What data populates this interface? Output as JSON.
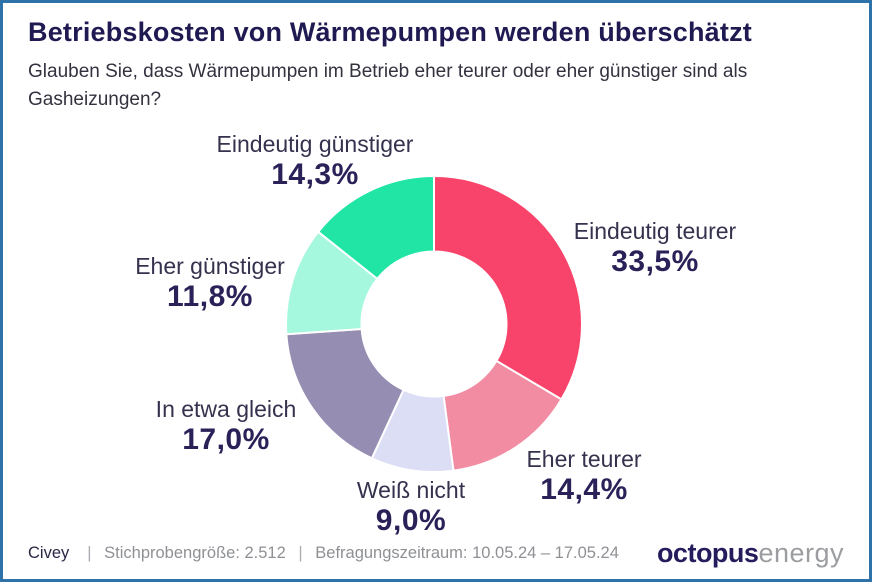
{
  "frame": {
    "border_color": "#2E72AA",
    "background": "#FFFFFF"
  },
  "header": {
    "title": "Betriebskosten von Wärmepumpen werden überschätzt",
    "subtitle": "Glauben Sie, dass Wärmepumpen im Betrieb eher teurer oder eher günstiger sind als Gasheizungen?"
  },
  "chart_data": {
    "type": "pie",
    "variant": "donut",
    "title": "Betriebskosten von Wärmepumpen werden überschätzt",
    "start_angle_deg": 0,
    "direction": "clockwise",
    "inner_radius_ratio": 0.49,
    "legend_position": "outside-labels",
    "categories": [
      "Eindeutig teurer",
      "Eher teurer",
      "Weiß nicht",
      "In etwa gleich",
      "Eher günstiger",
      "Eindeutig günstiger"
    ],
    "values": [
      33.5,
      14.4,
      9.0,
      17.0,
      11.8,
      14.3
    ],
    "segments": [
      {
        "label": "Eindeutig teurer",
        "value_pct": 33.5,
        "display": "33,5%",
        "color": "#F8436A"
      },
      {
        "label": "Eher teurer",
        "value_pct": 14.4,
        "display": "14,4%",
        "color": "#F28CA2"
      },
      {
        "label": "Weiß nicht",
        "value_pct": 9.0,
        "display": "9,0%",
        "color": "#DCDEF6"
      },
      {
        "label": "In etwa gleich",
        "value_pct": 17.0,
        "display": "17,0%",
        "color": "#968DB2"
      },
      {
        "label": "Eher günstiger",
        "value_pct": 11.8,
        "display": "11,8%",
        "color": "#A5F8DD"
      },
      {
        "label": "Eindeutig günstiger",
        "value_pct": 14.3,
        "display": "14,3%",
        "color": "#20E5A4"
      }
    ]
  },
  "footer": {
    "source": "Civey",
    "separator": "|",
    "sample_size": "Stichprobengröße: 2.512",
    "survey_period": "Befragungszeitraum: 10.05.24 – 17.05.24",
    "logo": {
      "brand_bold": "octopus",
      "brand_light": "energy"
    }
  }
}
